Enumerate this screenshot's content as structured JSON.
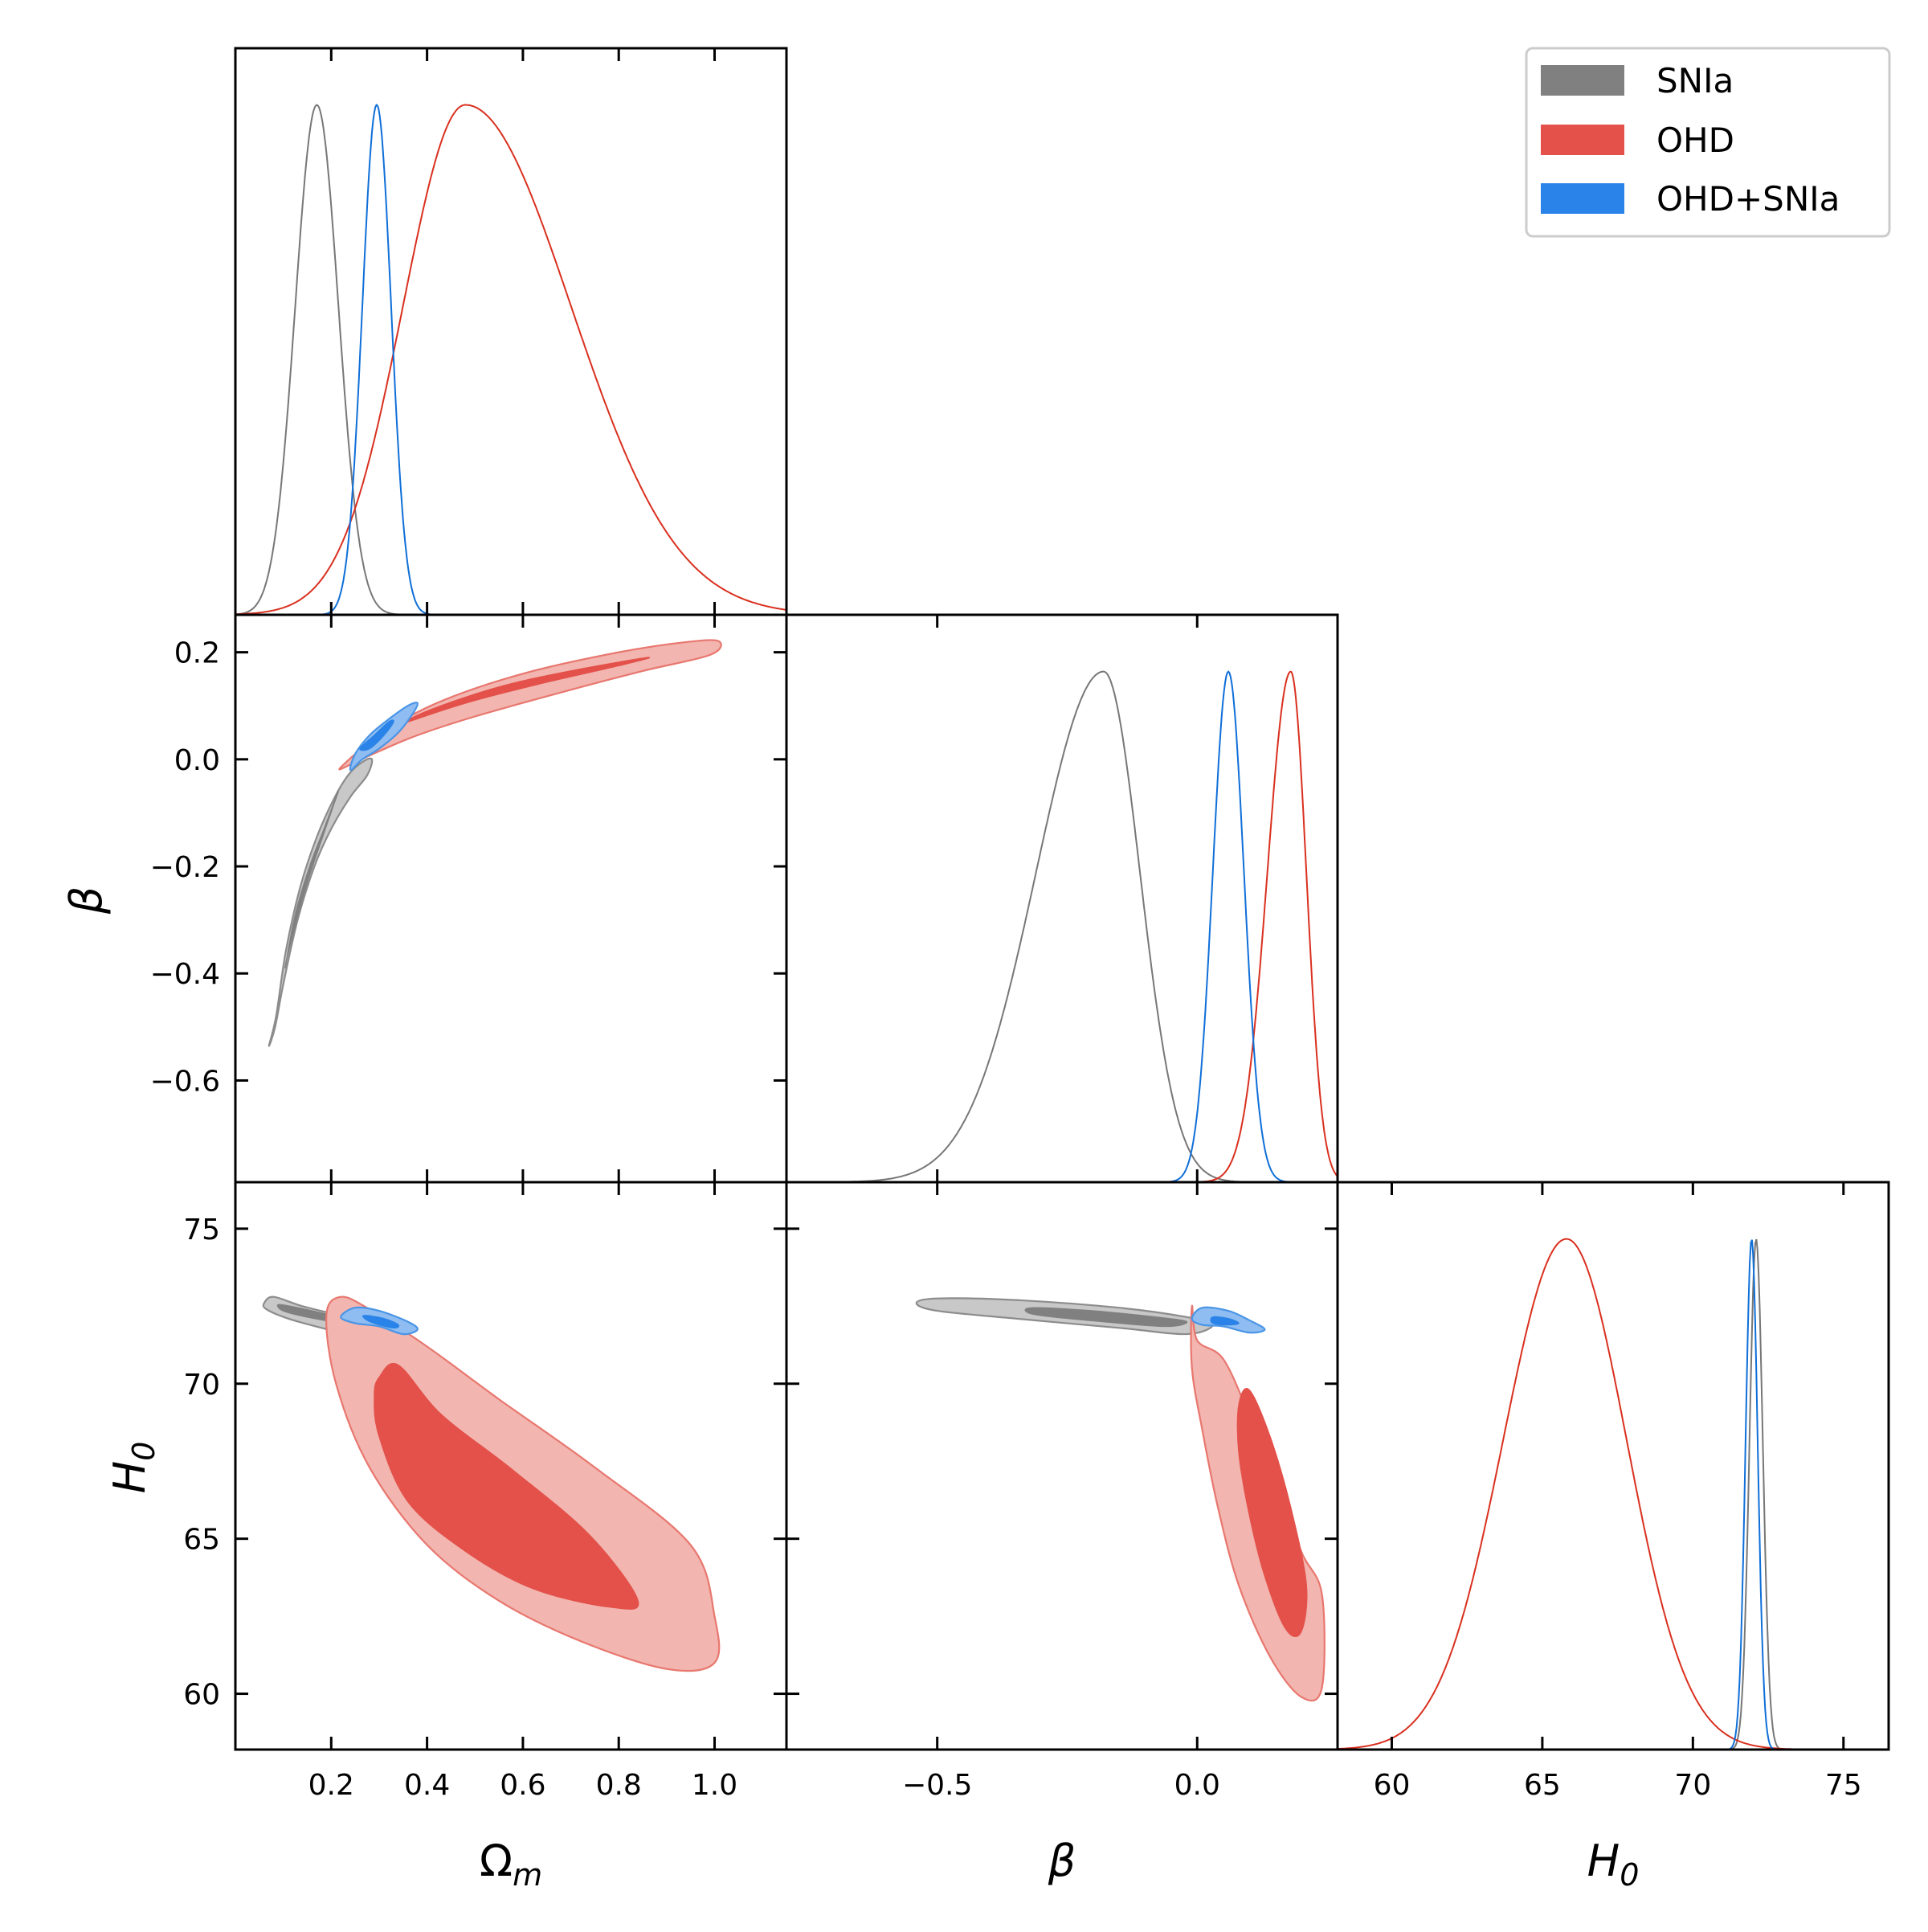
{
  "chart_data": {
    "type": "triangle-corner-plot",
    "description_levels": "filled contours show 68% and 95% credible regions; diagonal panels show 1D marginal posteriors",
    "parameters": [
      {
        "key": "om",
        "label": "Ω",
        "subscript": "m",
        "range": [
          0.0,
          1.15
        ],
        "ticks": [
          0.2,
          0.4,
          0.6,
          0.8,
          1.0
        ],
        "tick_labels": [
          "0.2",
          "0.4",
          "0.6",
          "0.8",
          "1.0"
        ]
      },
      {
        "key": "beta",
        "label": "β",
        "subscript": "",
        "range": [
          -0.79,
          0.27
        ],
        "ticks": [
          -0.5,
          0.0
        ],
        "tick_labels": [
          "−0.5",
          "0.0"
        ],
        "y_ticks": [
          0.2,
          0.0,
          -0.2,
          -0.4,
          -0.6
        ],
        "y_tick_labels": [
          "0.2",
          "0.0",
          "−0.2",
          "−0.4",
          "−0.6"
        ]
      },
      {
        "key": "h0",
        "label": "H",
        "subscript": "0",
        "range": [
          58.2,
          76.5
        ],
        "ticks": [
          60,
          65,
          70,
          75
        ],
        "tick_labels": [
          "60",
          "65",
          "70",
          "75"
        ]
      }
    ],
    "legend": {
      "placement": "top-right",
      "entries": [
        {
          "name": "SNIa",
          "color": "#808080",
          "edge": "#808080"
        },
        {
          "name": "OHD",
          "color": "#e3514a",
          "edge": "#d9301f"
        },
        {
          "name": "OHD+SNIa",
          "color": "#2a83e8",
          "edge": "#0f6fd8"
        }
      ]
    },
    "series": [
      {
        "name": "SNIa",
        "line_color": "#777777",
        "inner_fill": "#808080",
        "outer_fill": "#c8c8c8",
        "outer_edge": "#8c8c8c",
        "marginals": {
          "om": {
            "mean": 0.17,
            "sigma": 0.045
          },
          "beta": {
            "mean": -0.18,
            "sigma_left": 0.13,
            "sigma_right": 0.07
          },
          "h0": {
            "mean": 72.1,
            "sigma": 0.22
          }
        },
        "contours": {
          "om_beta": {
            "outer": [
              [
                0.07,
                -0.535
              ],
              [
                0.085,
                -0.48
              ],
              [
                0.105,
                -0.36
              ],
              [
                0.135,
                -0.24
              ],
              [
                0.17,
                -0.145
              ],
              [
                0.205,
                -0.075
              ],
              [
                0.235,
                -0.03
              ],
              [
                0.265,
                -0.005
              ],
              [
                0.285,
                0.0
              ],
              [
                0.275,
                -0.03
              ],
              [
                0.24,
                -0.07
              ],
              [
                0.2,
                -0.13
              ],
              [
                0.165,
                -0.2
              ],
              [
                0.13,
                -0.3
              ],
              [
                0.1,
                -0.42
              ],
              [
                0.083,
                -0.5
              ]
            ],
            "inner": [
              [
                0.105,
                -0.385
              ],
              [
                0.125,
                -0.29
              ],
              [
                0.155,
                -0.2
              ],
              [
                0.185,
                -0.13
              ],
              [
                0.21,
                -0.07
              ],
              [
                0.215,
                -0.06
              ],
              [
                0.205,
                -0.085
              ],
              [
                0.18,
                -0.15
              ],
              [
                0.15,
                -0.23
              ],
              [
                0.125,
                -0.31
              ],
              [
                0.108,
                -0.37
              ]
            ]
          },
          "om_h0": {
            "outer": [
              [
                0.06,
                72.6
              ],
              [
                0.08,
                72.8
              ],
              [
                0.14,
                72.5
              ],
              [
                0.22,
                72.2
              ],
              [
                0.28,
                72.0
              ],
              [
                0.31,
                71.7
              ],
              [
                0.25,
                71.55
              ],
              [
                0.18,
                71.8
              ],
              [
                0.11,
                72.1
              ],
              [
                0.065,
                72.4
              ]
            ],
            "inner": [
              [
                0.09,
                72.55
              ],
              [
                0.13,
                72.45
              ],
              [
                0.19,
                72.25
              ],
              [
                0.23,
                72.15
              ],
              [
                0.21,
                72.0
              ],
              [
                0.15,
                72.15
              ],
              [
                0.1,
                72.35
              ]
            ]
          },
          "beta_h0": {
            "outer": [
              [
                -0.54,
                72.6
              ],
              [
                -0.5,
                72.75
              ],
              [
                -0.35,
                72.7
              ],
              [
                -0.15,
                72.45
              ],
              [
                -0.02,
                72.15
              ],
              [
                0.03,
                71.9
              ],
              [
                -0.02,
                71.6
              ],
              [
                -0.15,
                71.8
              ],
              [
                -0.35,
                72.1
              ],
              [
                -0.5,
                72.35
              ]
            ],
            "inner": [
              [
                -0.31,
                72.45
              ],
              [
                -0.2,
                72.35
              ],
              [
                -0.08,
                72.15
              ],
              [
                -0.02,
                72.0
              ],
              [
                -0.06,
                71.85
              ],
              [
                -0.18,
                72.0
              ],
              [
                -0.3,
                72.2
              ],
              [
                -0.33,
                72.35
              ]
            ]
          }
        }
      },
      {
        "name": "OHD",
        "line_color": "#d9301f",
        "inner_fill": "#e3514a",
        "outer_fill": "#f2b5af",
        "outer_edge": "#e8776f",
        "marginals": {
          "om": {
            "mean": 0.48,
            "sigma_left": 0.13,
            "sigma_right": 0.22
          },
          "beta": {
            "mean": 0.18,
            "sigma_left": 0.045,
            "sigma_right": 0.03
          },
          "h0": {
            "mean": 65.8,
            "sigma_left": 2.1,
            "sigma_right": 2.0
          }
        },
        "contours": {
          "om_beta": {
            "outer": [
              [
                0.22,
                -0.015
              ],
              [
                0.3,
                0.045
              ],
              [
                0.42,
                0.105
              ],
              [
                0.6,
                0.16
              ],
              [
                0.8,
                0.2
              ],
              [
                0.95,
                0.22
              ],
              [
                1.01,
                0.22
              ],
              [
                0.99,
                0.195
              ],
              [
                0.85,
                0.165
              ],
              [
                0.68,
                0.125
              ],
              [
                0.5,
                0.08
              ],
              [
                0.38,
                0.045
              ],
              [
                0.3,
                0.015
              ],
              [
                0.24,
                -0.01
              ]
            ],
            "inner": [
              [
                0.31,
                0.05
              ],
              [
                0.4,
                0.09
              ],
              [
                0.55,
                0.135
              ],
              [
                0.7,
                0.165
              ],
              [
                0.86,
                0.19
              ],
              [
                0.8,
                0.175
              ],
              [
                0.63,
                0.14
              ],
              [
                0.48,
                0.105
              ],
              [
                0.36,
                0.07
              ],
              [
                0.31,
                0.055
              ]
            ]
          },
          "om_h0": {
            "outer": [
              [
                0.19,
                72.2
              ],
              [
                0.22,
                72.8
              ],
              [
                0.28,
                72.4
              ],
              [
                0.4,
                71.2
              ],
              [
                0.55,
                69.5
              ],
              [
                0.75,
                67.3
              ],
              [
                0.95,
                64.8
              ],
              [
                1.0,
                62.5
              ],
              [
                1.0,
                61.0
              ],
              [
                0.9,
                60.8
              ],
              [
                0.72,
                61.7
              ],
              [
                0.55,
                63.0
              ],
              [
                0.4,
                64.8
              ],
              [
                0.28,
                67.3
              ],
              [
                0.21,
                70.0
              ]
            ],
            "inner": [
              [
                0.3,
                70.2
              ],
              [
                0.34,
                70.6
              ],
              [
                0.43,
                69.0
              ],
              [
                0.58,
                67.2
              ],
              [
                0.74,
                65.1
              ],
              [
                0.84,
                63.0
              ],
              [
                0.78,
                62.8
              ],
              [
                0.62,
                63.4
              ],
              [
                0.48,
                64.6
              ],
              [
                0.36,
                66.2
              ],
              [
                0.3,
                68.3
              ],
              [
                0.29,
                69.6
              ]
            ]
          },
          "beta_h0": {
            "outer": [
              [
                -0.01,
                72.5
              ],
              [
                0.0,
                71.4
              ],
              [
                0.05,
                70.8
              ],
              [
                0.1,
                69.0
              ],
              [
                0.15,
                67.0
              ],
              [
                0.2,
                64.6
              ],
              [
                0.24,
                63.2
              ],
              [
                0.24,
                60.2
              ],
              [
                0.2,
                59.9
              ],
              [
                0.14,
                61.2
              ],
              [
                0.08,
                63.5
              ],
              [
                0.04,
                66.0
              ],
              [
                0.01,
                68.5
              ],
              [
                -0.01,
                70.5
              ]
            ],
            "inner": [
              [
                0.08,
                69.3
              ],
              [
                0.1,
                69.8
              ],
              [
                0.14,
                68.3
              ],
              [
                0.18,
                66.0
              ],
              [
                0.21,
                63.5
              ],
              [
                0.2,
                62.0
              ],
              [
                0.17,
                62.1
              ],
              [
                0.13,
                63.8
              ],
              [
                0.1,
                65.8
              ],
              [
                0.08,
                67.8
              ]
            ]
          }
        }
      },
      {
        "name": "OHD+SNIa",
        "line_color": "#0f6fd8",
        "inner_fill": "#2a83e8",
        "outer_fill": "#8fbdf1",
        "outer_edge": "#4a95e6",
        "marginals": {
          "om": {
            "mean": 0.295,
            "sigma": 0.03
          },
          "beta": {
            "mean": 0.06,
            "sigma": 0.03
          },
          "h0": {
            "mean": 71.95,
            "sigma": 0.2
          }
        },
        "contours": {
          "om_beta": {
            "outer": [
              [
                0.24,
                -0.02
              ],
              [
                0.25,
                0.01
              ],
              [
                0.28,
                0.045
              ],
              [
                0.32,
                0.075
              ],
              [
                0.36,
                0.1
              ],
              [
                0.38,
                0.105
              ],
              [
                0.37,
                0.085
              ],
              [
                0.34,
                0.05
              ],
              [
                0.3,
                0.02
              ],
              [
                0.265,
                0.0
              ]
            ],
            "inner": [
              [
                0.26,
                0.02
              ],
              [
                0.29,
                0.045
              ],
              [
                0.32,
                0.07
              ],
              [
                0.33,
                0.07
              ],
              [
                0.31,
                0.045
              ],
              [
                0.28,
                0.02
              ]
            ]
          },
          "om_h0": {
            "outer": [
              [
                0.22,
                72.15
              ],
              [
                0.25,
                72.45
              ],
              [
                0.3,
                72.35
              ],
              [
                0.36,
                72.0
              ],
              [
                0.38,
                71.75
              ],
              [
                0.35,
                71.6
              ],
              [
                0.3,
                71.85
              ],
              [
                0.25,
                71.95
              ]
            ],
            "inner": [
              [
                0.27,
                72.2
              ],
              [
                0.31,
                72.1
              ],
              [
                0.34,
                71.9
              ],
              [
                0.33,
                71.8
              ],
              [
                0.29,
                71.95
              ],
              [
                0.27,
                72.1
              ]
            ]
          },
          "beta_h0": {
            "outer": [
              [
                -0.01,
                72.1
              ],
              [
                0.01,
                72.45
              ],
              [
                0.06,
                72.35
              ],
              [
                0.1,
                72.05
              ],
              [
                0.13,
                71.75
              ],
              [
                0.1,
                71.65
              ],
              [
                0.05,
                71.85
              ],
              [
                0.01,
                71.9
              ]
            ],
            "inner": [
              [
                0.03,
                72.15
              ],
              [
                0.06,
                72.1
              ],
              [
                0.08,
                71.95
              ],
              [
                0.06,
                71.9
              ],
              [
                0.03,
                71.95
              ]
            ]
          }
        }
      }
    ]
  }
}
